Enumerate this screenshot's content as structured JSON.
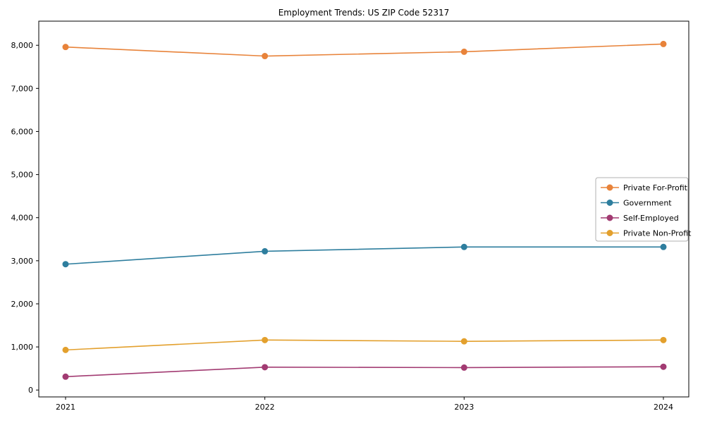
{
  "page": {
    "title": "Employment Trends: US ZIP Code 52317"
  },
  "chart_data": {
    "type": "line",
    "title": "Employment Trends: US ZIP Code 52317",
    "categories": [
      "2021",
      "2022",
      "2023",
      "2024"
    ],
    "series": [
      {
        "name": "Private For-Profit",
        "color": "#e8833a",
        "values": [
          7960,
          7750,
          7850,
          8030
        ]
      },
      {
        "name": "Government",
        "color": "#2e7e9e",
        "values": [
          2920,
          3220,
          3320,
          3320
        ]
      },
      {
        "name": "Self-Employed",
        "color": "#a23b72",
        "values": [
          310,
          530,
          520,
          540
        ]
      },
      {
        "name": "Private Non-Profit",
        "color": "#e3a02d",
        "values": [
          930,
          1160,
          1130,
          1160
        ]
      }
    ],
    "xlabel": "",
    "ylabel": "",
    "ylim": [
      0,
      8000
    ],
    "yticks": [
      0,
      1000,
      2000,
      3000,
      4000,
      5000,
      6000,
      7000,
      8000
    ],
    "grid": false,
    "legend_position": "center right",
    "marker": "o",
    "line_width": 1.6,
    "marker_radius": 4,
    "frame_color": "#000000",
    "legend_border_color": "#b0b0b0"
  }
}
